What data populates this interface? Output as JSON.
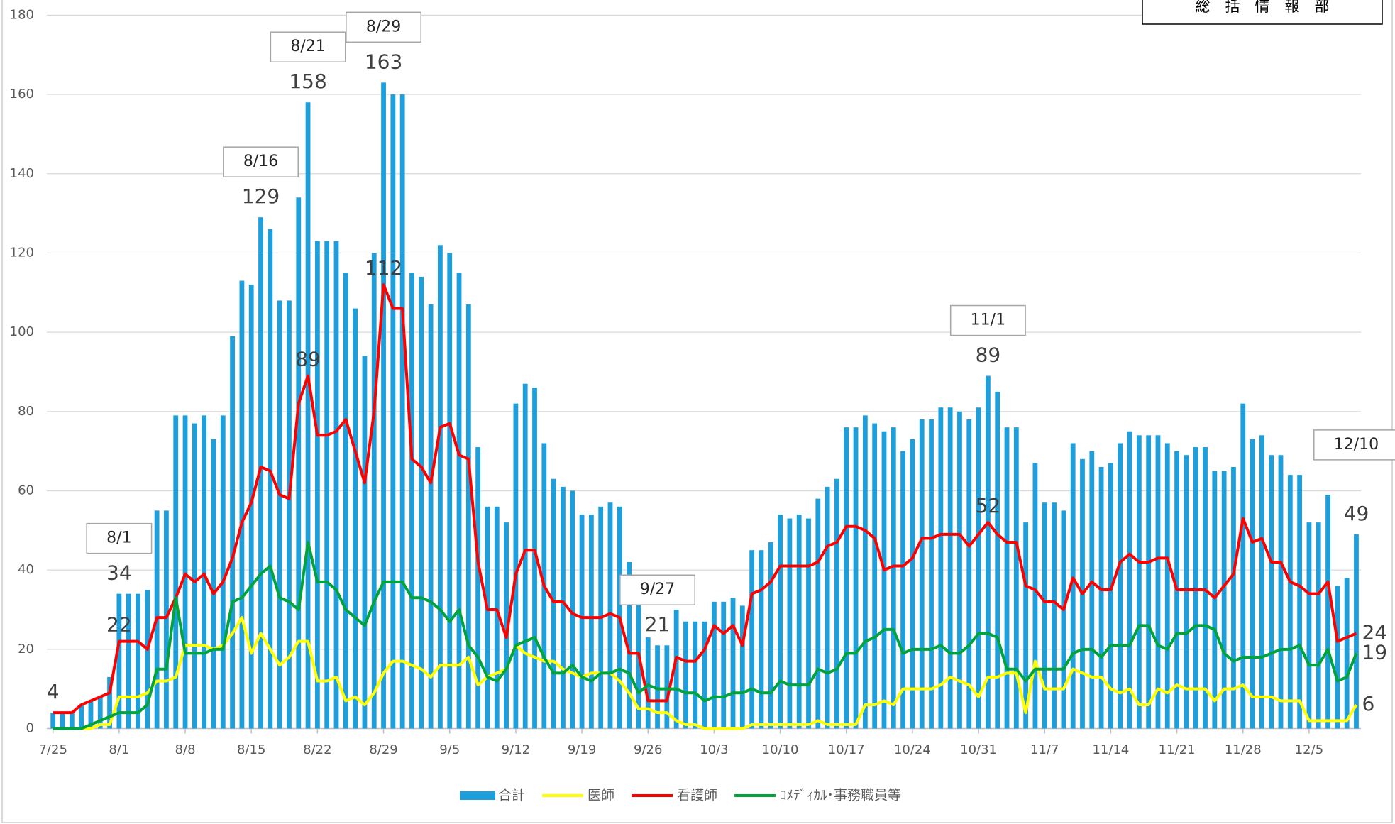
{
  "note": "総　括　情　報　部",
  "chart_data": {
    "type": "bar",
    "ylim": [
      0,
      180
    ],
    "yticks": [
      0,
      20,
      40,
      60,
      80,
      100,
      120,
      140,
      160,
      180
    ],
    "grid": true,
    "legend": "bottom",
    "categories": [
      "7/25",
      null,
      null,
      null,
      null,
      null,
      null,
      "8/1",
      null,
      null,
      null,
      null,
      null,
      null,
      "8/8",
      null,
      null,
      null,
      null,
      null,
      null,
      "8/15",
      null,
      null,
      null,
      null,
      null,
      null,
      "8/22",
      null,
      null,
      null,
      null,
      null,
      null,
      "8/29",
      null,
      null,
      null,
      null,
      null,
      null,
      "9/5",
      null,
      null,
      null,
      null,
      null,
      null,
      "9/12",
      null,
      null,
      null,
      null,
      null,
      null,
      "9/19",
      null,
      null,
      null,
      null,
      null,
      null,
      "9/26",
      null,
      null,
      null,
      null,
      null,
      null,
      "10/3",
      null,
      null,
      null,
      null,
      null,
      null,
      "10/10",
      null,
      null,
      null,
      null,
      null,
      null,
      "10/17",
      null,
      null,
      null,
      null,
      null,
      null,
      "10/24",
      null,
      null,
      null,
      null,
      null,
      null,
      "10/31",
      null,
      null,
      null,
      null,
      null,
      null,
      "11/7",
      null,
      null,
      null,
      null,
      null,
      null,
      "11/14",
      null,
      null,
      null,
      null,
      null,
      null,
      "11/21",
      null,
      null,
      null,
      null,
      null,
      null,
      "11/28",
      null,
      null,
      null,
      null,
      null,
      null,
      "12/5",
      null,
      null,
      null,
      null,
      null
    ],
    "annotations": [
      "8/1",
      "8/16",
      "8/21",
      "8/29",
      "9/27",
      "11/1",
      "12/10"
    ],
    "series": [
      {
        "name": "合計",
        "type": "bar",
        "color": "#1e9fdb",
        "values": [
          4,
          4,
          4,
          6,
          7,
          8,
          13,
          34,
          34,
          34,
          35,
          55,
          55,
          79,
          79,
          77,
          79,
          73,
          79,
          99,
          113,
          112,
          129,
          126,
          108,
          108,
          134,
          158,
          123,
          123,
          123,
          115,
          106,
          94,
          120,
          163,
          160,
          160,
          115,
          114,
          107,
          122,
          120,
          115,
          107,
          71,
          56,
          56,
          52,
          82,
          87,
          86,
          72,
          63,
          61,
          60,
          54,
          54,
          56,
          57,
          56,
          42,
          33,
          23,
          21,
          21,
          30,
          27,
          27,
          27,
          32,
          32,
          33,
          31,
          45,
          45,
          47,
          54,
          53,
          54,
          53,
          58,
          61,
          63,
          76,
          76,
          79,
          77,
          75,
          76,
          70,
          73,
          78,
          78,
          81,
          81,
          80,
          78,
          81,
          89,
          85,
          76,
          76,
          52,
          67,
          57,
          57,
          55,
          72,
          68,
          70,
          66,
          67,
          72,
          75,
          74,
          74,
          74,
          72,
          70,
          69,
          71,
          71,
          65,
          65,
          66,
          82,
          73,
          74,
          69,
          69,
          64,
          64,
          52,
          52,
          59,
          36,
          38,
          49
        ],
        "value_labels": [
          "4",
          null,
          null,
          null,
          null,
          null,
          null,
          "34",
          null,
          null,
          null,
          null,
          null,
          null,
          null,
          null,
          null,
          null,
          null,
          null,
          null,
          null,
          "129",
          null,
          null,
          null,
          null,
          "158",
          null,
          null,
          null,
          null,
          null,
          null,
          null,
          "163",
          null,
          null,
          null,
          null,
          null,
          null,
          null,
          null,
          null,
          null,
          null,
          null,
          null,
          null,
          null,
          null,
          null,
          null,
          null,
          null,
          null,
          null,
          null,
          null,
          null,
          null,
          null,
          null,
          "21",
          null,
          null,
          null,
          null,
          null,
          null,
          null,
          null,
          null,
          null,
          null,
          null,
          null,
          null,
          null,
          null,
          null,
          null,
          null,
          null,
          null,
          null,
          null,
          null,
          null,
          null,
          null,
          null,
          null,
          null,
          null,
          null,
          null,
          null,
          "89",
          null,
          null,
          null,
          null,
          null,
          null,
          null,
          null,
          null,
          null,
          null,
          null,
          null,
          null,
          null,
          null,
          null,
          null,
          null,
          null,
          null,
          null,
          null,
          null,
          null,
          null,
          null,
          null,
          null,
          null,
          null,
          null,
          null,
          null,
          null,
          null,
          null,
          null,
          "49"
        ]
      },
      {
        "name": "医師",
        "type": "line",
        "color": "#ffff00",
        "values": [
          0,
          0,
          0,
          0,
          0,
          1,
          1,
          8,
          8,
          8,
          9,
          12,
          12,
          13,
          21,
          21,
          21,
          20,
          21,
          24,
          28,
          19,
          24,
          20,
          16,
          18,
          22,
          22,
          12,
          12,
          13,
          7,
          8,
          6,
          9,
          14,
          17,
          17,
          16,
          15,
          13,
          16,
          16,
          16,
          18,
          11,
          13,
          14,
          15,
          21,
          19,
          18,
          17,
          17,
          15,
          14,
          13,
          14,
          14,
          14,
          12,
          9,
          5,
          5,
          4,
          4,
          2,
          1,
          1,
          0,
          0,
          0,
          0,
          0,
          1,
          1,
          1,
          1,
          1,
          1,
          1,
          2,
          1,
          1,
          1,
          1,
          6,
          6,
          7,
          6,
          10,
          10,
          10,
          10,
          11,
          13,
          12,
          11,
          8,
          13,
          13,
          14,
          14,
          4,
          17,
          10,
          10,
          10,
          15,
          14,
          13,
          13,
          10,
          9,
          10,
          6,
          6,
          10,
          9,
          11,
          10,
          10,
          10,
          7,
          10,
          10,
          11,
          8,
          8,
          8,
          7,
          7,
          7,
          2,
          2,
          2,
          2,
          2,
          6
        ],
        "value_labels": [
          null,
          null,
          null,
          null,
          null,
          null,
          null,
          null,
          null,
          null,
          null,
          null,
          null,
          null,
          null,
          null,
          null,
          null,
          null,
          null,
          null,
          null,
          null,
          null,
          null,
          null,
          null,
          null,
          null,
          null,
          null,
          null,
          null,
          null,
          null,
          null,
          null,
          null,
          null,
          null,
          null,
          null,
          null,
          null,
          null,
          null,
          null,
          null,
          null,
          null,
          null,
          null,
          null,
          null,
          null,
          null,
          null,
          null,
          null,
          null,
          null,
          null,
          null,
          null,
          null,
          null,
          null,
          null,
          null,
          null,
          null,
          null,
          null,
          null,
          null,
          null,
          null,
          null,
          null,
          null,
          null,
          null,
          null,
          null,
          null,
          null,
          null,
          null,
          null,
          null,
          null,
          null,
          null,
          null,
          null,
          null,
          null,
          null,
          null,
          null,
          null,
          null,
          null,
          null,
          null,
          null,
          null,
          null,
          null,
          null,
          null,
          null,
          null,
          null,
          null,
          null,
          null,
          null,
          null,
          null,
          null,
          null,
          null,
          null,
          null,
          null,
          null,
          null,
          null,
          null,
          null,
          null,
          null,
          null,
          null,
          null,
          null,
          null,
          "6"
        ]
      },
      {
        "name": "看護師",
        "type": "line",
        "color": "#ff0000",
        "values": [
          4,
          4,
          4,
          6,
          7,
          8,
          9,
          22,
          22,
          22,
          20,
          28,
          28,
          33,
          39,
          37,
          39,
          34,
          37,
          43,
          52,
          57,
          66,
          65,
          59,
          58,
          82,
          89,
          74,
          74,
          75,
          78,
          70,
          62,
          80,
          112,
          106,
          106,
          68,
          66,
          62,
          76,
          77,
          69,
          68,
          42,
          30,
          30,
          23,
          39,
          45,
          45,
          36,
          32,
          32,
          29,
          28,
          28,
          28,
          29,
          28,
          19,
          19,
          7,
          7,
          7,
          18,
          17,
          17,
          20,
          26,
          24,
          26,
          21,
          34,
          35,
          37,
          41,
          41,
          41,
          41,
          42,
          46,
          47,
          51,
          51,
          50,
          48,
          40,
          41,
          41,
          43,
          48,
          48,
          49,
          49,
          49,
          46,
          49,
          52,
          49,
          47,
          47,
          36,
          35,
          32,
          32,
          30,
          38,
          34,
          37,
          35,
          35,
          42,
          44,
          42,
          42,
          43,
          43,
          35,
          35,
          35,
          35,
          33,
          36,
          39,
          53,
          47,
          48,
          42,
          42,
          37,
          36,
          34,
          34,
          37,
          22,
          23,
          24
        ],
        "value_labels": [
          null,
          null,
          null,
          null,
          null,
          null,
          null,
          "22",
          null,
          null,
          null,
          null,
          null,
          null,
          null,
          null,
          null,
          null,
          null,
          null,
          null,
          null,
          null,
          null,
          null,
          null,
          null,
          "89",
          null,
          null,
          null,
          null,
          null,
          null,
          null,
          "112",
          null,
          null,
          null,
          null,
          null,
          null,
          null,
          null,
          null,
          null,
          null,
          null,
          null,
          null,
          null,
          null,
          null,
          null,
          null,
          null,
          null,
          null,
          null,
          null,
          null,
          null,
          null,
          null,
          null,
          null,
          null,
          null,
          null,
          null,
          null,
          null,
          null,
          null,
          null,
          null,
          null,
          null,
          null,
          null,
          null,
          null,
          null,
          null,
          null,
          null,
          null,
          null,
          null,
          null,
          null,
          null,
          null,
          null,
          null,
          null,
          null,
          null,
          null,
          "52",
          null,
          null,
          null,
          null,
          null,
          null,
          null,
          null,
          null,
          null,
          null,
          null,
          null,
          null,
          null,
          null,
          null,
          null,
          null,
          null,
          null,
          null,
          null,
          null,
          null,
          null,
          null,
          null,
          null,
          null,
          null,
          null,
          null,
          null,
          null,
          null,
          null,
          null,
          "24"
        ]
      },
      {
        "name": "ｺﾒﾃﾞｨｶﾙ･事務職員等",
        "type": "line",
        "color": "#00a33c",
        "values": [
          0,
          0,
          0,
          0,
          1,
          2,
          3,
          4,
          4,
          4,
          6,
          15,
          15,
          33,
          19,
          19,
          19,
          20,
          20,
          32,
          33,
          36,
          39,
          41,
          33,
          32,
          30,
          47,
          37,
          37,
          35,
          30,
          28,
          26,
          32,
          37,
          37,
          37,
          33,
          33,
          32,
          30,
          27,
          30,
          21,
          18,
          13,
          12,
          15,
          21,
          22,
          23,
          18,
          14,
          14,
          16,
          13,
          12,
          14,
          14,
          15,
          14,
          9,
          11,
          10,
          10,
          10,
          9,
          9,
          7,
          8,
          8,
          9,
          9,
          10,
          9,
          9,
          12,
          11,
          11,
          11,
          15,
          14,
          15,
          19,
          19,
          22,
          23,
          25,
          25,
          19,
          20,
          20,
          20,
          21,
          19,
          19,
          21,
          24,
          24,
          23,
          15,
          15,
          12,
          15,
          15,
          15,
          15,
          19,
          20,
          20,
          18,
          21,
          21,
          21,
          26,
          26,
          21,
          20,
          24,
          24,
          26,
          26,
          25,
          19,
          17,
          18,
          18,
          18,
          19,
          20,
          20,
          21,
          16,
          16,
          20,
          12,
          13,
          19
        ],
        "value_labels": [
          null,
          null,
          null,
          null,
          null,
          null,
          null,
          null,
          null,
          null,
          null,
          null,
          null,
          null,
          null,
          null,
          null,
          null,
          null,
          null,
          null,
          null,
          null,
          null,
          null,
          null,
          null,
          null,
          null,
          null,
          null,
          null,
          null,
          null,
          null,
          null,
          null,
          null,
          null,
          null,
          null,
          null,
          null,
          null,
          null,
          null,
          null,
          null,
          null,
          null,
          null,
          null,
          null,
          null,
          null,
          null,
          null,
          null,
          null,
          null,
          null,
          null,
          null,
          null,
          null,
          null,
          null,
          null,
          null,
          null,
          null,
          null,
          null,
          null,
          null,
          null,
          null,
          null,
          null,
          null,
          null,
          null,
          null,
          null,
          null,
          null,
          null,
          null,
          null,
          null,
          null,
          null,
          null,
          null,
          null,
          null,
          null,
          null,
          null,
          null,
          null,
          null,
          null,
          null,
          null,
          null,
          null,
          null,
          null,
          null,
          null,
          null,
          null,
          null,
          null,
          null,
          null,
          null,
          null,
          null,
          null,
          null,
          null,
          null,
          null,
          null,
          null,
          null,
          null,
          null,
          null,
          null,
          null,
          null,
          null,
          null,
          null,
          null,
          "19"
        ]
      }
    ]
  }
}
